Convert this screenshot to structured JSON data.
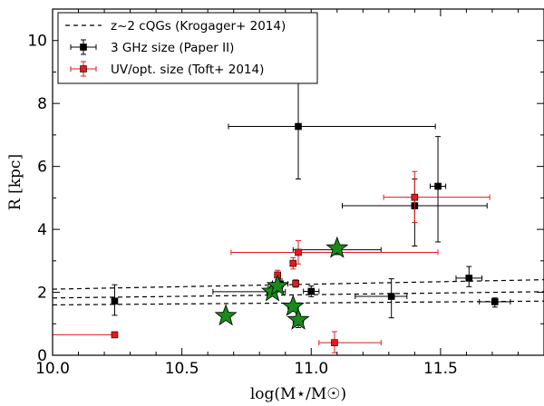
{
  "chart_data": {
    "type": "scatter",
    "xlabel": "log(M⋆/M☉)",
    "ylabel": "R [kpc]",
    "xlim": [
      10.0,
      11.9
    ],
    "ylim": [
      0,
      11
    ],
    "xticks": [
      10.0,
      10.5,
      11.0,
      11.5
    ],
    "xtick_labels": [
      "10.0",
      "10.5",
      "11.0",
      "11.5"
    ],
    "yticks": [
      0,
      2,
      4,
      6,
      8,
      10
    ],
    "ytick_labels": [
      "0",
      "2",
      "4",
      "6",
      "8",
      "10"
    ],
    "grid": false,
    "legend_position": "top-left",
    "colors": {
      "radio": "#000000",
      "uv": "#e31a1c",
      "star": "#1a8a1a",
      "line": "#000000"
    },
    "lines": {
      "label": "z~2 cQGs (Krogager+ 2014)",
      "style": "dashed",
      "segments": [
        {
          "x": [
            10.0,
            11.9
          ],
          "y": [
            2.1,
            2.4
          ]
        },
        {
          "x": [
            10.0,
            11.9
          ],
          "y": [
            1.82,
            2.02
          ]
        },
        {
          "x": [
            10.0,
            11.9
          ],
          "y": [
            1.6,
            1.72
          ]
        }
      ]
    },
    "series": [
      {
        "name": "3 GHz size (Paper II)",
        "marker": "square",
        "points": [
          {
            "x": 10.24,
            "y": 1.72,
            "xerr": [
              0.0,
              0.0
            ],
            "yerr": [
              0.45,
              0.52
            ]
          },
          {
            "x": 10.95,
            "y": 7.27,
            "xerr": [
              0.27,
              0.53
            ],
            "yerr": [
              1.67,
              1.52
            ]
          },
          {
            "x": 11.4,
            "y": 4.75,
            "xerr": [
              0.28,
              0.28
            ],
            "yerr": [
              1.28,
              0.85
            ]
          },
          {
            "x": 11.49,
            "y": 5.37,
            "xerr": [
              0.03,
              0.03
            ],
            "yerr": [
              1.77,
              1.58
            ]
          },
          {
            "x": 11.61,
            "y": 2.45,
            "xerr": [
              0.05,
              0.05
            ],
            "yerr": [
              0.27,
              0.37
            ]
          },
          {
            "x": 11.71,
            "y": 1.7,
            "xerr": [
              0.06,
              0.06
            ],
            "yerr": [
              0.17,
              0.12
            ]
          },
          {
            "x": 11.31,
            "y": 1.87,
            "xerr": [
              0.14,
              0.06
            ],
            "yerr": [
              0.68,
              0.56
            ]
          },
          {
            "x": 11.0,
            "y": 2.03,
            "xerr": [
              0.03,
              0.03
            ],
            "yerr": [
              0.17,
              0.17
            ]
          },
          {
            "x": 10.88,
            "y": 2.27,
            "xerr": [
              0.03,
              0.03
            ],
            "yerr": [
              0.15,
              0.15
            ]
          },
          {
            "x": 10.93,
            "y": 1.55,
            "xerr": [
              0.02,
              0.02
            ],
            "yerr": [
              0.15,
              0.15
            ]
          },
          {
            "x": 10.95,
            "y": 1.1,
            "xerr": [
              0.02,
              0.02
            ],
            "yerr": [
              0.22,
              0.22
            ]
          },
          {
            "x": 10.84,
            "y": 2.02,
            "xerr": [
              0.22,
              0.06
            ],
            "yerr": [
              0.15,
              0.15
            ]
          },
          {
            "x": 11.1,
            "y": 3.35,
            "xerr": [
              0.17,
              0.17
            ],
            "yerr": [
              0.15,
              0.15
            ]
          }
        ]
      },
      {
        "name": "UV/opt. size (Toft+ 2014)",
        "marker": "square",
        "points": [
          {
            "x": 10.24,
            "y": 0.65,
            "xerr": [
              0.24,
              0.0
            ],
            "yerr": [
              0.0,
              0.0
            ]
          },
          {
            "x": 10.95,
            "y": 3.27,
            "xerr": [
              0.26,
              0.54
            ],
            "yerr": [
              0.37,
              0.37
            ]
          },
          {
            "x": 11.4,
            "y": 5.02,
            "xerr": [
              0.12,
              0.29
            ],
            "yerr": [
              0.8,
              0.82
            ]
          },
          {
            "x": 11.09,
            "y": 0.4,
            "xerr": [
              0.06,
              0.18
            ],
            "yerr": [
              0.32,
              0.35
            ]
          },
          {
            "x": 10.93,
            "y": 2.92,
            "xerr": [
              0.01,
              0.01
            ],
            "yerr": [
              0.18,
              0.18
            ]
          },
          {
            "x": 10.87,
            "y": 2.55,
            "xerr": [
              0.01,
              0.01
            ],
            "yerr": [
              0.15,
              0.15
            ]
          },
          {
            "x": 10.94,
            "y": 2.28,
            "xerr": [
              0.01,
              0.01
            ],
            "yerr": [
              0.12,
              0.12
            ]
          }
        ]
      }
    ],
    "stars": [
      {
        "x": 10.67,
        "y": 1.25
      },
      {
        "x": 10.85,
        "y": 2.02
      },
      {
        "x": 10.87,
        "y": 2.2
      },
      {
        "x": 10.93,
        "y": 1.55
      },
      {
        "x": 10.95,
        "y": 1.12
      },
      {
        "x": 11.1,
        "y": 3.4
      }
    ]
  }
}
